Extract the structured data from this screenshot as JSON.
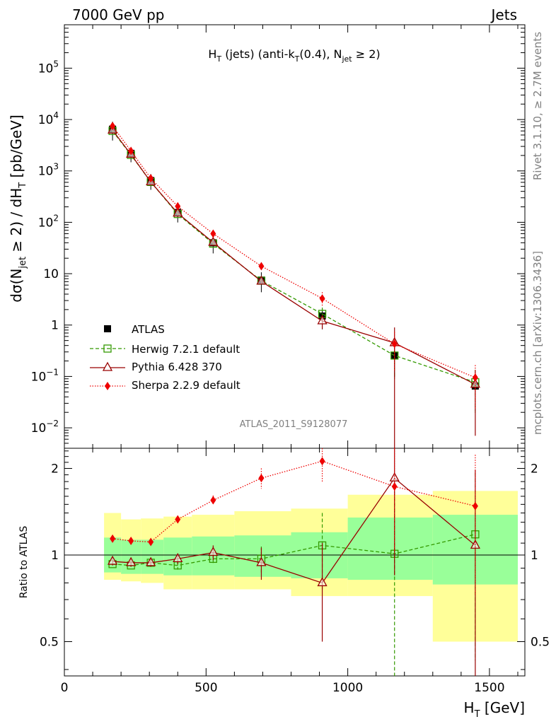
{
  "header": {
    "left": "7000 GeV pp",
    "right": "Jets"
  },
  "side": {
    "rivet": "Rivet 3.1.10, ≥ 2.7M events",
    "mcplots": "mcplots.cern.ch [arXiv:1306.3436]"
  },
  "chart_data": {
    "type": "line",
    "title": "H_T (jets) (anti-k_T(0.4), N_jet ≥ 2)",
    "title_parts": {
      "a": "H",
      "a_sub": "T",
      "b": " (jets) (anti-k",
      "b_sub": "T",
      "c": "(0.4), N",
      "c_sub": "jet",
      "d": " ≥ 2)"
    },
    "analysis": "ATLAS_2011_S9128077",
    "xlabel": "H_T [GeV]",
    "xlabel_parts": {
      "a": "H",
      "a_sub": "T",
      "b": " [GeV]"
    },
    "ylabel": "dσ(N_jet ≥ 2) / dH_T [pb/GeV]",
    "ylabel_parts": {
      "a": "dσ(N",
      "a_sub": "jet",
      "b": " ≥ 2) / dH",
      "b_sub": "T",
      "c": " [pb/GeV]"
    },
    "ratio_ylabel": "Ratio to ATLAS",
    "xlim": [
      0,
      1625
    ],
    "ylim": [
      0.004,
      700000
    ],
    "ratio_ylim": [
      0.38,
      2.35
    ],
    "x_ticks": [
      0,
      500,
      1000,
      1500
    ],
    "x_tick_labels": [
      "0",
      "500",
      "1000",
      "1500"
    ],
    "y_ticks": [
      {
        "value": 0.01,
        "base": "10",
        "exp": "−2",
        "plain": ""
      },
      {
        "value": 0.1,
        "base": "10",
        "exp": "−1",
        "plain": ""
      },
      {
        "value": 1,
        "base": "",
        "exp": "",
        "plain": "1"
      },
      {
        "value": 10,
        "base": "",
        "exp": "",
        "plain": "10"
      },
      {
        "value": 100,
        "base": "10",
        "exp": "2",
        "plain": ""
      },
      {
        "value": 1000,
        "base": "10",
        "exp": "3",
        "plain": ""
      },
      {
        "value": 10000,
        "base": "10",
        "exp": "4",
        "plain": ""
      },
      {
        "value": 100000,
        "base": "10",
        "exp": "5",
        "plain": ""
      }
    ],
    "ratio_ticks": [
      0.5,
      1,
      2
    ],
    "ratio_tick_labels": [
      "0.5",
      "1",
      "2"
    ],
    "bins": [
      {
        "lo": 140,
        "hi": 200
      },
      {
        "lo": 200,
        "hi": 270
      },
      {
        "lo": 270,
        "hi": 350
      },
      {
        "lo": 350,
        "hi": 450
      },
      {
        "lo": 450,
        "hi": 600
      },
      {
        "lo": 600,
        "hi": 800
      },
      {
        "lo": 800,
        "hi": 1000
      },
      {
        "lo": 1000,
        "hi": 1300
      },
      {
        "lo": 1300,
        "hi": 1600
      }
    ],
    "x": [
      170,
      235,
      305,
      400,
      525,
      695,
      910,
      1165,
      1450
    ],
    "reference": {
      "name": "ATLAS",
      "values": [
        6500,
        2200,
        650,
        155,
        40,
        7.5,
        1.5,
        0.25,
        0.065
      ],
      "band_inner": [
        [
          0.87,
          1.15
        ],
        [
          0.86,
          1.13
        ],
        [
          0.86,
          1.13
        ],
        [
          0.85,
          1.15
        ],
        [
          0.85,
          1.16
        ],
        [
          0.84,
          1.17
        ],
        [
          0.83,
          1.2
        ],
        [
          0.82,
          1.35
        ],
        [
          0.79,
          1.38
        ]
      ],
      "band_outer": [
        [
          0.82,
          1.4
        ],
        [
          0.81,
          1.33
        ],
        [
          0.8,
          1.34
        ],
        [
          0.76,
          1.36
        ],
        [
          0.76,
          1.38
        ],
        [
          0.76,
          1.42
        ],
        [
          0.72,
          1.45
        ],
        [
          0.72,
          1.62
        ],
        [
          0.5,
          1.67
        ]
      ]
    },
    "series": [
      {
        "name": "Herwig 7.2.1 default",
        "color": "#339900",
        "values": [
          6000,
          2050,
          610,
          145,
          38.5,
          7.3,
          1.65,
          0.255,
          0.077
        ],
        "ratio": [
          0.93,
          0.92,
          0.94,
          0.92,
          0.97,
          0.97,
          1.08,
          1.01,
          1.18
        ],
        "ratio_err": [
          0.02,
          0.02,
          0.02,
          0.03,
          0.04,
          0.1,
          0.32,
          0.65,
          0.75
        ]
      },
      {
        "name": "Pythia 6.428 370",
        "color": "#990000",
        "values": [
          6200,
          2100,
          610,
          150,
          40.5,
          7.1,
          1.2,
          0.45,
          0.07
        ],
        "ratio": [
          0.95,
          0.94,
          0.94,
          0.97,
          1.02,
          0.94,
          0.8,
          1.85,
          1.08
        ],
        "ratio_err": [
          0.03,
          0.03,
          0.03,
          0.04,
          0.06,
          0.12,
          0.3,
          1.0,
          0.9
        ]
      },
      {
        "name": "Sherpa 2.2.9 default",
        "color": "#ee0000",
        "values": [
          7500,
          2450,
          720,
          205,
          60,
          14,
          3.3,
          0.43,
          0.095
        ],
        "ratio": [
          1.14,
          1.12,
          1.11,
          1.33,
          1.55,
          1.85,
          2.12,
          1.73,
          1.48
        ],
        "ratio_err": [
          0.02,
          0.02,
          0.02,
          0.04,
          0.06,
          0.15,
          0.32,
          0.7,
          0.75
        ]
      }
    ],
    "legend_position": "lower-left"
  }
}
